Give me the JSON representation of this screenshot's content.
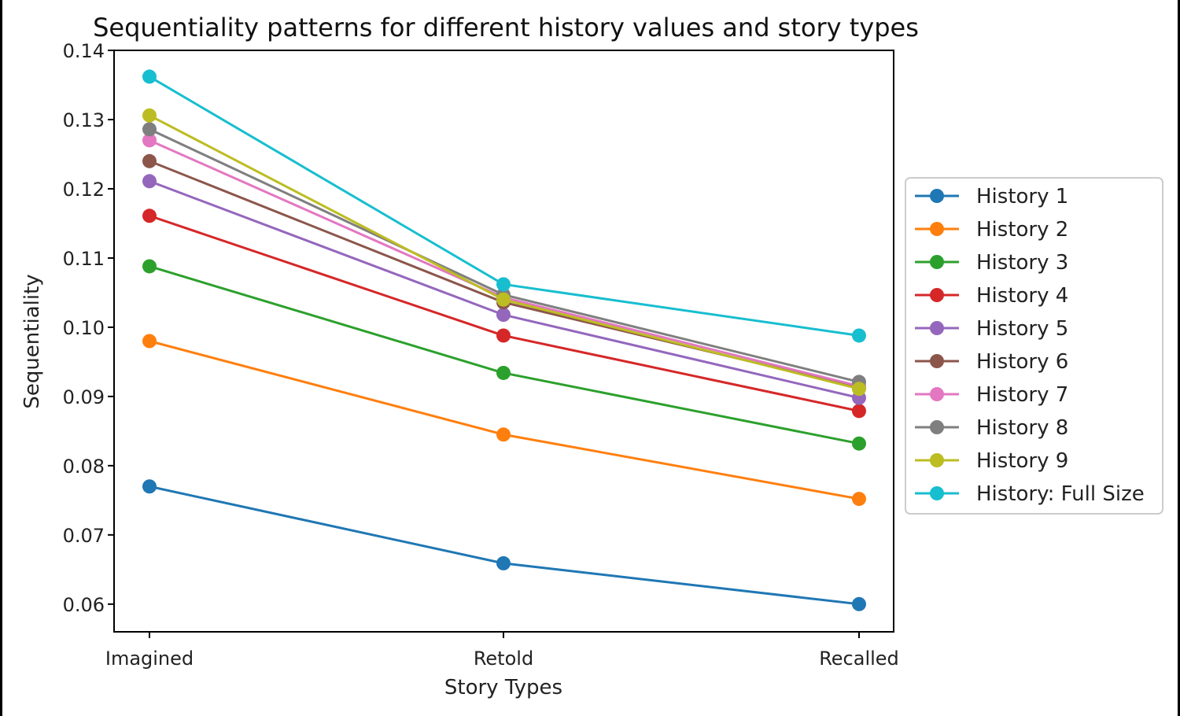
{
  "chart_data": {
    "type": "line",
    "title": "Sequentiality patterns for different history values and story types",
    "xlabel": "Story Types",
    "ylabel": "Sequentiality",
    "categories": [
      "Imagined",
      "Retold",
      "Recalled"
    ],
    "ylim": [
      0.056,
      0.14
    ],
    "yticks": [
      "0.06",
      "0.07",
      "0.08",
      "0.09",
      "0.10",
      "0.11",
      "0.12",
      "0.13",
      "0.14"
    ],
    "legend_position": "center-right outside",
    "grid": false,
    "series": [
      {
        "name": "History 1",
        "color": "#1f77b4",
        "values": [
          0.077,
          0.0659,
          0.06
        ]
      },
      {
        "name": "History 2",
        "color": "#ff7f0e",
        "values": [
          0.098,
          0.0845,
          0.0752
        ]
      },
      {
        "name": "History 3",
        "color": "#2ca02c",
        "values": [
          0.1088,
          0.0934,
          0.0832
        ]
      },
      {
        "name": "History 4",
        "color": "#d62728",
        "values": [
          0.1161,
          0.0988,
          0.0879
        ]
      },
      {
        "name": "History 5",
        "color": "#9467bd",
        "values": [
          0.1211,
          0.1018,
          0.0898
        ]
      },
      {
        "name": "History 6",
        "color": "#8c564b",
        "values": [
          0.124,
          0.1036,
          0.0913
        ]
      },
      {
        "name": "History 7",
        "color": "#e377c2",
        "values": [
          0.127,
          0.1043,
          0.0915
        ]
      },
      {
        "name": "History 8",
        "color": "#7f7f7f",
        "values": [
          0.1286,
          0.1047,
          0.0921
        ]
      },
      {
        "name": "History 9",
        "color": "#bcbd22",
        "values": [
          0.1306,
          0.104,
          0.0911
        ]
      },
      {
        "name": "History: Full Size",
        "color": "#17becf",
        "values": [
          0.1362,
          0.1062,
          0.0988
        ]
      }
    ]
  }
}
